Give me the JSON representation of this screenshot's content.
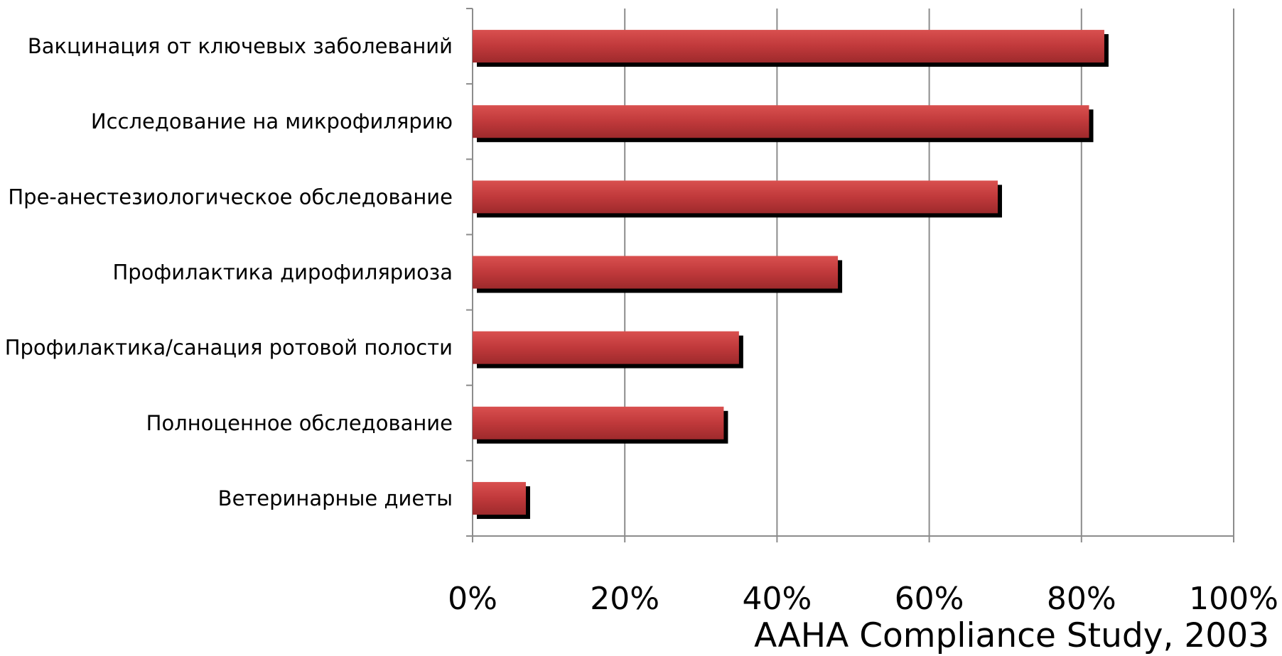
{
  "chart_data": {
    "type": "bar",
    "orientation": "horizontal",
    "categories": [
      "Вакцинация от ключевых заболеваний",
      "Исследование на микрофилярию",
      "Пре-анестезиологическое обследование",
      "Профилактика дирофиляриоза",
      "Профилактика/санация ротовой полости",
      "Полноценное обследование",
      "Ветеринарные диеты"
    ],
    "values": [
      83,
      81,
      69,
      48,
      35,
      33,
      7
    ],
    "x_ticks": [
      "0%",
      "20%",
      "40%",
      "60%",
      "80%",
      "100%"
    ],
    "xlim": [
      0,
      100
    ],
    "grid": true,
    "bar_color": "#c0393b",
    "shadow_color": "#000000",
    "legend": "none"
  },
  "source_text": "AAHA Compliance Study, 2003"
}
